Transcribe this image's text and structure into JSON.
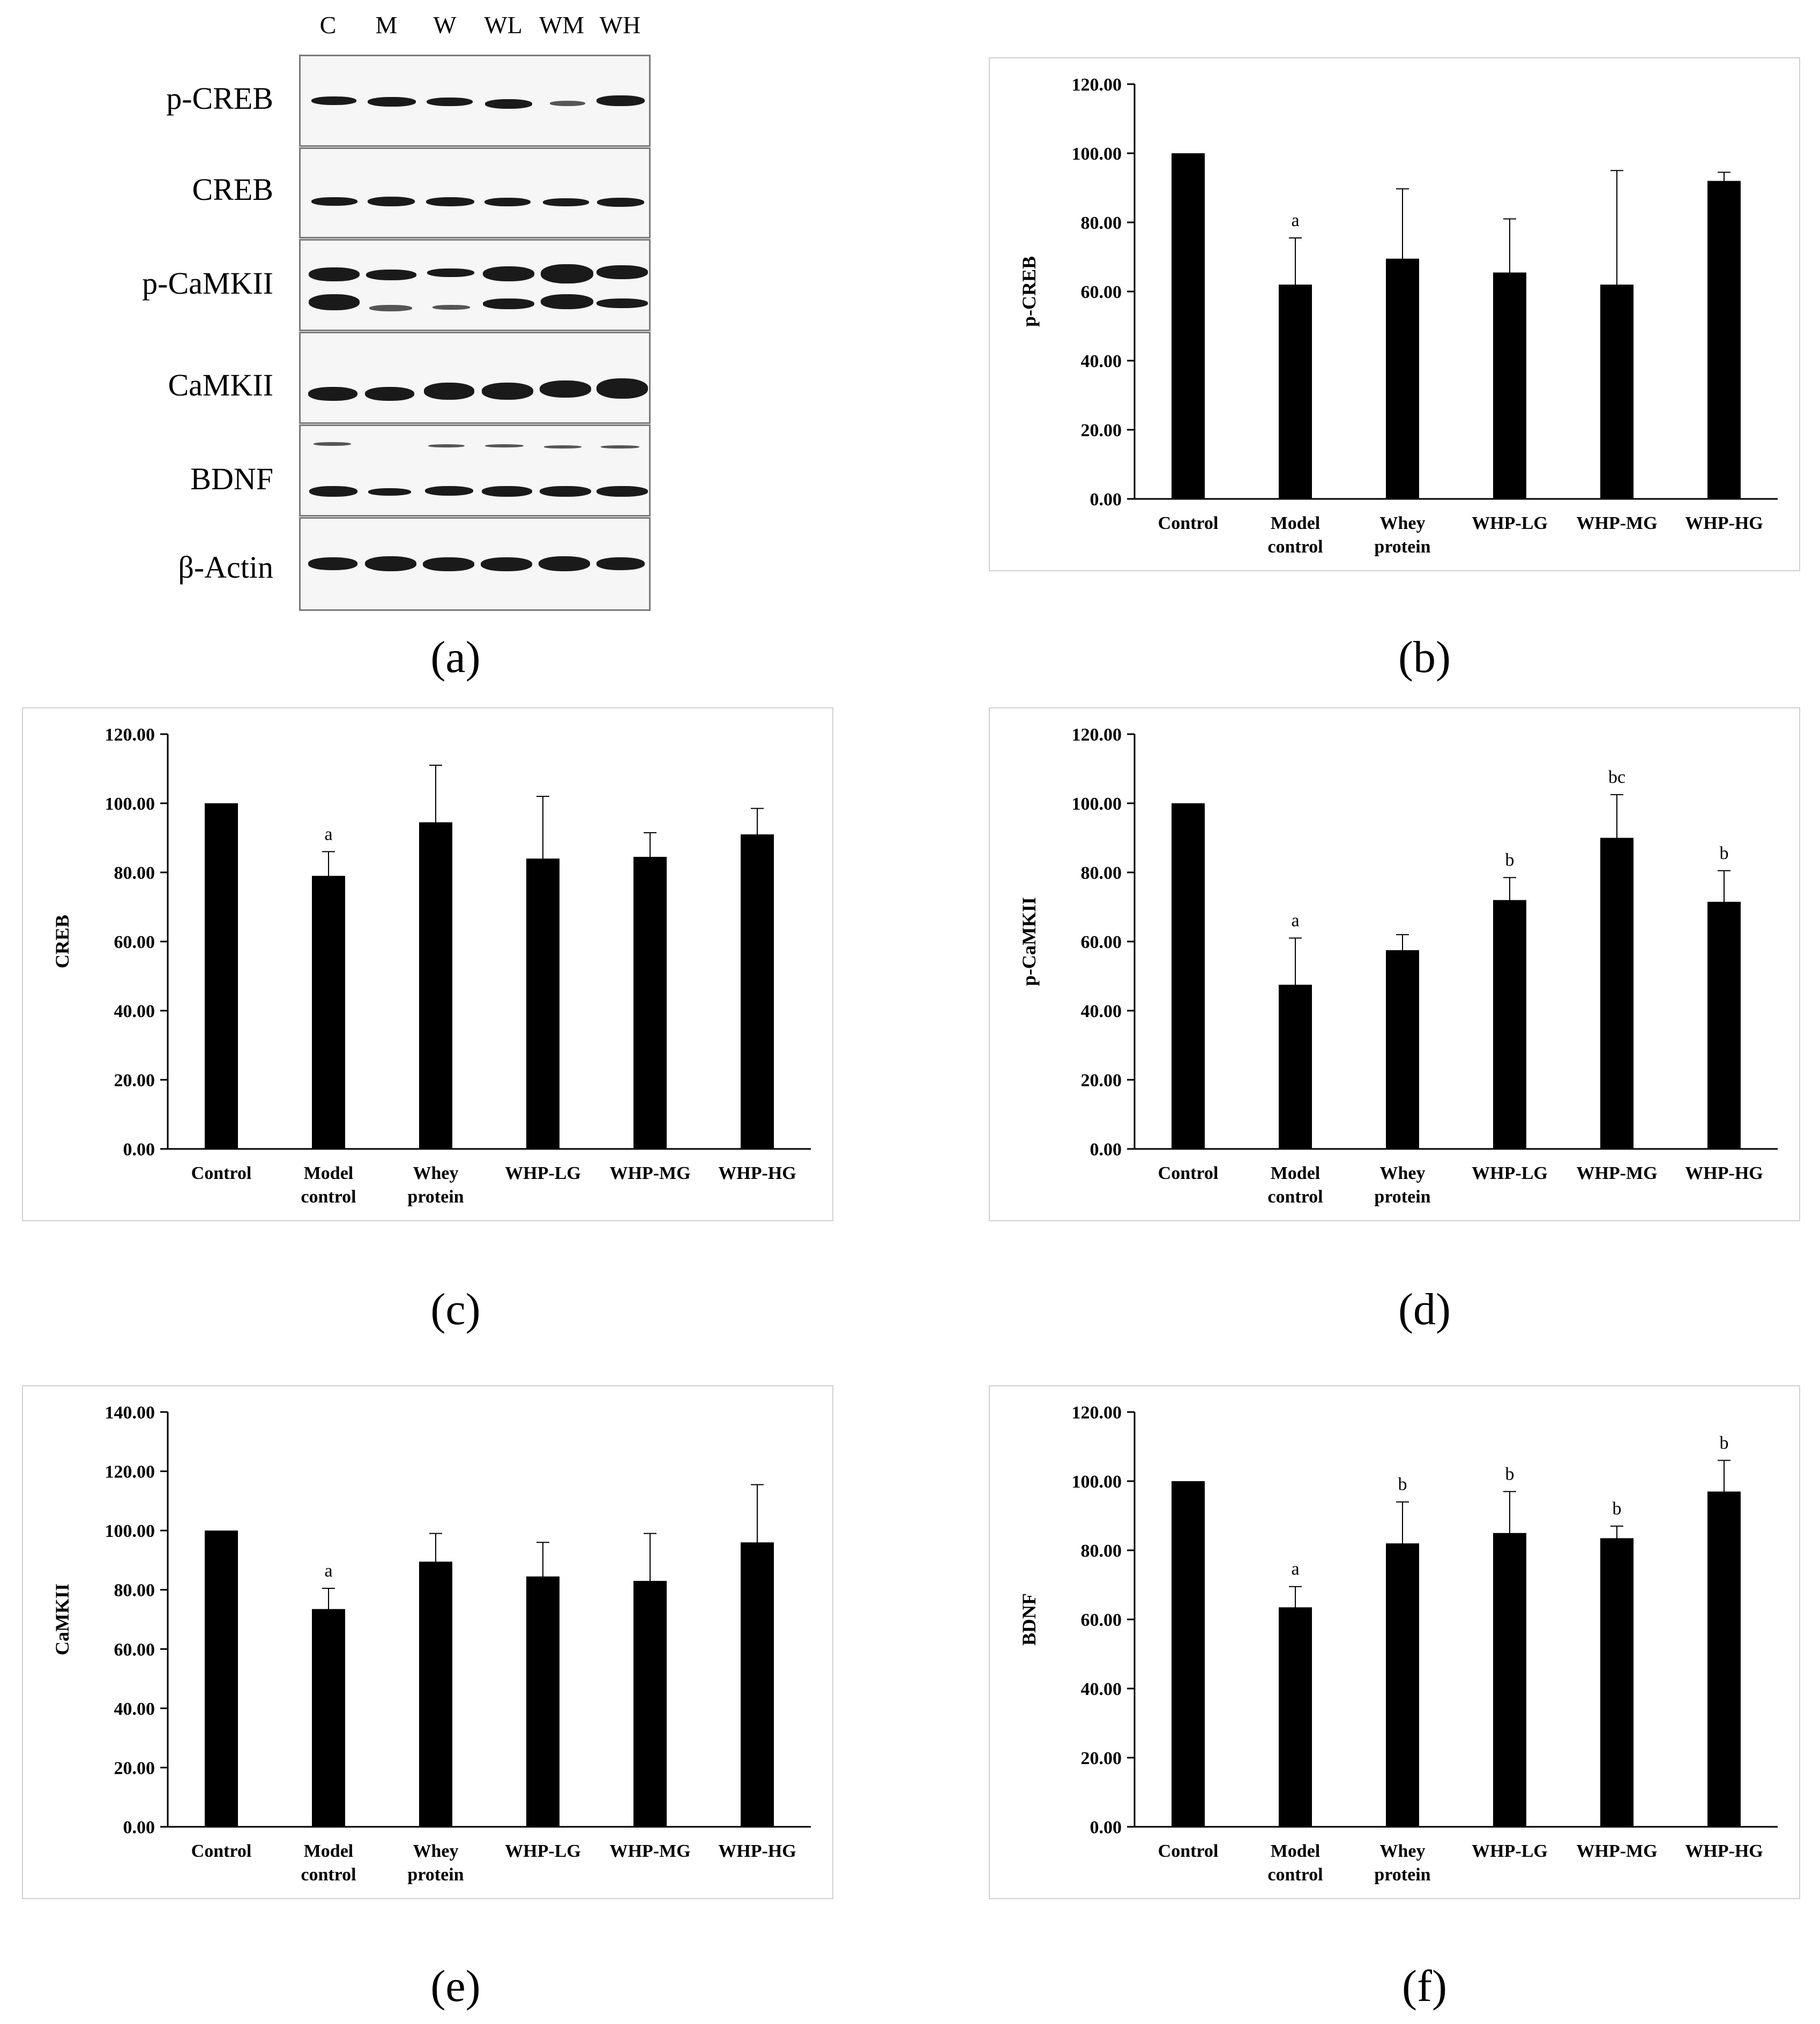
{
  "panel_labels": [
    "(a)",
    "(b)",
    "(c)",
    "(d)",
    "(e)",
    "(f)"
  ],
  "blot": {
    "lanes": [
      "C",
      "M",
      "W",
      "WL",
      "WM",
      "WH"
    ],
    "rows": [
      "p-CREB",
      "CREB",
      "p-CaMKII",
      "CaMKII",
      "BDNF",
      "β-Actin"
    ]
  },
  "chart_data": [
    {
      "panel": "(b)",
      "type": "bar",
      "ylabel": "p-CREB",
      "ylim": [
        0,
        120
      ],
      "yticks": [
        "0.00",
        "20.00",
        "40.00",
        "60.00",
        "80.00",
        "100.00",
        "120.00"
      ],
      "categories": [
        [
          "Control"
        ],
        [
          "Model",
          "control"
        ],
        [
          "Whey",
          "protein"
        ],
        [
          "WHP-LG"
        ],
        [
          "WHP-MG"
        ],
        [
          "WHP-HG"
        ]
      ],
      "values": [
        100.0,
        62.0,
        69.5,
        65.5,
        62.0,
        92.0
      ],
      "errors": [
        0,
        13.5,
        20.2,
        15.5,
        33.0,
        2.5
      ],
      "annotations": [
        "",
        "a",
        "",
        "",
        "",
        ""
      ]
    },
    {
      "panel": "(c)",
      "type": "bar",
      "ylabel": "CREB",
      "ylim": [
        0,
        120
      ],
      "yticks": [
        "0.00",
        "20.00",
        "40.00",
        "60.00",
        "80.00",
        "100.00",
        "120.00"
      ],
      "categories": [
        [
          "Control"
        ],
        [
          "Model",
          "control"
        ],
        [
          "Whey",
          "protein"
        ],
        [
          "WHP-LG"
        ],
        [
          "WHP-MG"
        ],
        [
          "WHP-HG"
        ]
      ],
      "values": [
        100.0,
        79.0,
        94.5,
        84.0,
        84.5,
        91.0
      ],
      "errors": [
        0,
        7.0,
        16.5,
        18.0,
        7.0,
        7.5
      ],
      "annotations": [
        "",
        "a",
        "",
        "",
        "",
        ""
      ]
    },
    {
      "panel": "(d)",
      "type": "bar",
      "ylabel": "p-CaMKII",
      "ylim": [
        0,
        120
      ],
      "yticks": [
        "0.00",
        "20.00",
        "40.00",
        "60.00",
        "80.00",
        "100.00",
        "120.00"
      ],
      "categories": [
        [
          "Control"
        ],
        [
          "Model",
          "control"
        ],
        [
          "Whey",
          "protein"
        ],
        [
          "WHP-LG"
        ],
        [
          "WHP-MG"
        ],
        [
          "WHP-HG"
        ]
      ],
      "values": [
        100.0,
        47.5,
        57.5,
        72.0,
        90.0,
        71.5
      ],
      "errors": [
        0,
        13.5,
        4.5,
        6.5,
        12.5,
        9.0
      ],
      "annotations": [
        "",
        "a",
        "",
        "b",
        "bc",
        "b"
      ]
    },
    {
      "panel": "(e)",
      "type": "bar",
      "ylabel": "CaMKII",
      "ylim": [
        0,
        140
      ],
      "yticks": [
        "0.00",
        "20.00",
        "40.00",
        "60.00",
        "80.00",
        "100.00",
        "120.00",
        "140.00"
      ],
      "categories": [
        [
          "Control"
        ],
        [
          "Model",
          "control"
        ],
        [
          "Whey",
          "protein"
        ],
        [
          "WHP-LG"
        ],
        [
          "WHP-MG"
        ],
        [
          "WHP-HG"
        ]
      ],
      "values": [
        100.0,
        73.5,
        89.5,
        84.5,
        83.0,
        96.0
      ],
      "errors": [
        0,
        7.0,
        9.5,
        11.5,
        16.0,
        19.5
      ],
      "annotations": [
        "",
        "a",
        "",
        "",
        "",
        ""
      ]
    },
    {
      "panel": "(f)",
      "type": "bar",
      "ylabel": "BDNF",
      "ylim": [
        0,
        120
      ],
      "yticks": [
        "0.00",
        "20.00",
        "40.00",
        "60.00",
        "80.00",
        "100.00",
        "120.00"
      ],
      "categories": [
        [
          "Control"
        ],
        [
          "Model",
          "control"
        ],
        [
          "Whey",
          "protein"
        ],
        [
          "WHP-LG"
        ],
        [
          "WHP-MG"
        ],
        [
          "WHP-HG"
        ]
      ],
      "values": [
        100.0,
        63.5,
        82.0,
        85.0,
        83.5,
        97.0
      ],
      "errors": [
        0,
        6.0,
        12.0,
        12.0,
        3.5,
        9.0
      ],
      "annotations": [
        "",
        "a",
        "b",
        "b",
        "b",
        "b"
      ]
    }
  ]
}
